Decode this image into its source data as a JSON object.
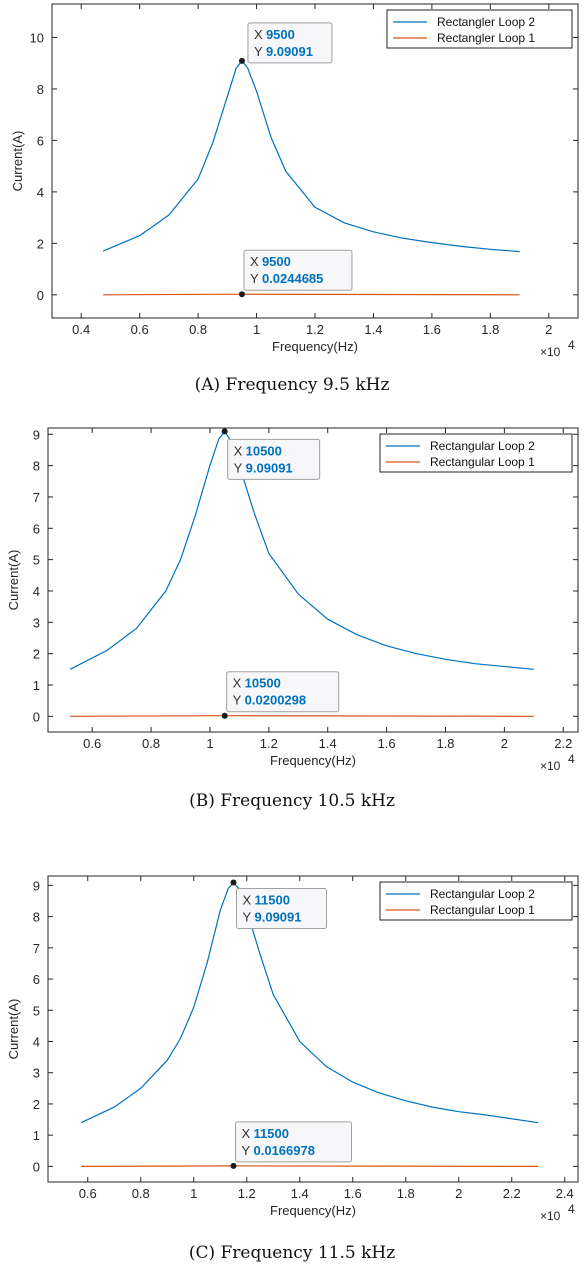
{
  "chart_data": [
    {
      "type": "line",
      "caption": "(A) Frequency 9.5 kHz",
      "xlabel": "Frequency(Hz)",
      "ylabel": "Current(A)",
      "x_multiplier": "×10",
      "x_multiplier_exp": "4",
      "xlim": [
        0.3,
        2.1
      ],
      "ylim": [
        -0.9,
        11.3
      ],
      "xticks": [
        "0.4",
        "0.6",
        "0.8",
        "1",
        "1.2",
        "1.4",
        "1.6",
        "1.8",
        "2"
      ],
      "yticks": [
        "0",
        "2",
        "4",
        "6",
        "8",
        "10"
      ],
      "legend_position": "top-right",
      "series": [
        {
          "name": "Rectangler Loop 2",
          "color": "#0072bd",
          "x": [
            0.475,
            0.6,
            0.7,
            0.8,
            0.85,
            0.9,
            0.93,
            0.95,
            0.97,
            1.0,
            1.05,
            1.1,
            1.2,
            1.3,
            1.4,
            1.5,
            1.6,
            1.7,
            1.8,
            1.9
          ],
          "y": [
            1.7,
            2.3,
            3.1,
            4.5,
            5.9,
            7.7,
            8.8,
            9.09,
            8.8,
            7.9,
            6.1,
            4.8,
            3.4,
            2.8,
            2.45,
            2.2,
            2.03,
            1.88,
            1.77,
            1.68
          ]
        },
        {
          "name": "Rectangler Loop 1",
          "color": "#d95319",
          "x": [
            0.475,
            0.95,
            1.9
          ],
          "y": [
            0.0,
            0.0244685,
            0.0
          ]
        }
      ],
      "annotations": [
        {
          "x_label": "X",
          "y_label": "Y",
          "x": "9500",
          "y": "9.09091",
          "x_value": 0.95,
          "y_value": 9.09091
        },
        {
          "x_label": "X",
          "y_label": "Y",
          "x": "9500",
          "y": "0.0244685",
          "x_value": 0.95,
          "y_value": 0.0244685
        }
      ]
    },
    {
      "type": "line",
      "caption": "(B) Frequency 10.5 kHz",
      "xlabel": "Frequency(Hz)",
      "ylabel": "Current(A)",
      "x_multiplier": "×10",
      "x_multiplier_exp": "4",
      "xlim": [
        0.45,
        2.25
      ],
      "ylim": [
        -0.5,
        9.2
      ],
      "xticks": [
        "0.6",
        "0.8",
        "1",
        "1.2",
        "1.4",
        "1.6",
        "1.8",
        "2",
        "2.2"
      ],
      "yticks": [
        "0",
        "1",
        "2",
        "3",
        "4",
        "5",
        "6",
        "7",
        "8",
        "9"
      ],
      "legend_position": "top-right",
      "series": [
        {
          "name": "Rectangular Loop 2",
          "color": "#0072bd",
          "x": [
            0.525,
            0.65,
            0.75,
            0.85,
            0.9,
            0.95,
            1.0,
            1.03,
            1.05,
            1.07,
            1.1,
            1.15,
            1.2,
            1.3,
            1.4,
            1.5,
            1.6,
            1.7,
            1.8,
            1.9,
            2.1
          ],
          "y": [
            1.5,
            2.1,
            2.8,
            4.0,
            5.0,
            6.4,
            8.0,
            8.85,
            9.09,
            8.8,
            8.0,
            6.5,
            5.2,
            3.9,
            3.1,
            2.6,
            2.25,
            2.0,
            1.82,
            1.68,
            1.5
          ]
        },
        {
          "name": "Rectangular Loop 1",
          "color": "#d95319",
          "x": [
            0.525,
            1.05,
            2.1
          ],
          "y": [
            0.0,
            0.0200298,
            0.0
          ]
        }
      ],
      "annotations": [
        {
          "x_label": "X",
          "y_label": "Y",
          "x": "10500",
          "y": "9.09091",
          "x_value": 1.05,
          "y_value": 9.09091
        },
        {
          "x_label": "X",
          "y_label": "Y",
          "x": "10500",
          "y": "0.0200298",
          "x_value": 1.05,
          "y_value": 0.0200298
        }
      ]
    },
    {
      "type": "line",
      "caption": "(C) Frequency 11.5 kHz",
      "xlabel": "Frequency(Hz)",
      "ylabel": "Current(A)",
      "x_multiplier": "×10",
      "x_multiplier_exp": "4",
      "xlim": [
        0.45,
        2.45
      ],
      "ylim": [
        -0.5,
        9.3
      ],
      "xticks": [
        "0.6",
        "0.8",
        "1",
        "1.2",
        "1.4",
        "1.6",
        "1.8",
        "2",
        "2.2",
        "2.4"
      ],
      "yticks": [
        "0",
        "1",
        "2",
        "3",
        "4",
        "5",
        "6",
        "7",
        "8",
        "9"
      ],
      "legend_position": "top-right",
      "series": [
        {
          "name": "Rectangular Loop 2",
          "color": "#0072bd",
          "x": [
            0.575,
            0.7,
            0.8,
            0.9,
            0.95,
            1.0,
            1.05,
            1.1,
            1.13,
            1.15,
            1.17,
            1.2,
            1.25,
            1.3,
            1.4,
            1.5,
            1.6,
            1.7,
            1.8,
            1.9,
            2.0,
            2.1,
            2.3
          ],
          "y": [
            1.4,
            1.9,
            2.5,
            3.4,
            4.1,
            5.1,
            6.5,
            8.2,
            8.9,
            9.09,
            8.9,
            8.2,
            6.8,
            5.5,
            4.0,
            3.2,
            2.7,
            2.35,
            2.1,
            1.9,
            1.75,
            1.65,
            1.4
          ]
        },
        {
          "name": "Rectangular Loop 1",
          "color": "#d95319",
          "x": [
            0.575,
            1.15,
            2.3
          ],
          "y": [
            0.0,
            0.0166978,
            0.0
          ]
        }
      ],
      "annotations": [
        {
          "x_label": "X",
          "y_label": "Y",
          "x": "11500",
          "y": "9.09091",
          "x_value": 1.15,
          "y_value": 9.09091
        },
        {
          "x_label": "X",
          "y_label": "Y",
          "x": "11500",
          "y": "0.0166978",
          "x_value": 1.15,
          "y_value": 0.0166978
        }
      ]
    }
  ]
}
